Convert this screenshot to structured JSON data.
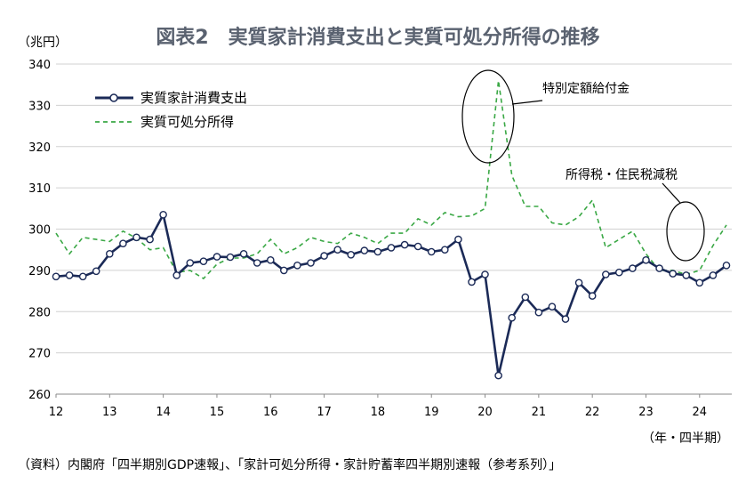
{
  "chart_data": {
    "type": "line",
    "title": "図表2　実質家計消費支出と実質可処分所得の推移",
    "ylabel": "（兆円）",
    "xlabel": "（年・四半期）",
    "ylim": [
      260,
      340
    ],
    "yticks": [
      260,
      270,
      280,
      290,
      300,
      310,
      320,
      330,
      340
    ],
    "xlim": [
      12,
      24.6
    ],
    "xticks": [
      12,
      13,
      14,
      15,
      16,
      17,
      18,
      19,
      20,
      21,
      22,
      23,
      24
    ],
    "grid": "horizontal",
    "legend_position": "top-left",
    "colors": {
      "consumption": "#1b2a57",
      "income": "#3aa845"
    },
    "series": [
      {
        "name": "実質家計消費支出",
        "style": "solid-marker",
        "x": [
          12.0,
          12.25,
          12.5,
          12.75,
          13.0,
          13.25,
          13.5,
          13.75,
          14.0,
          14.25,
          14.5,
          14.75,
          15.0,
          15.25,
          15.5,
          15.75,
          16.0,
          16.25,
          16.5,
          16.75,
          17.0,
          17.25,
          17.5,
          17.75,
          18.0,
          18.25,
          18.5,
          18.75,
          19.0,
          19.25,
          19.5,
          19.75,
          20.0,
          20.25,
          20.5,
          20.75,
          21.0,
          21.25,
          21.5,
          21.75,
          22.0,
          22.25,
          22.5,
          22.75,
          23.0,
          23.25,
          23.5,
          23.75,
          24.0,
          24.25,
          24.5
        ],
        "values": [
          288.5,
          288.8,
          288.5,
          289.8,
          294.0,
          296.5,
          298.0,
          297.5,
          303.5,
          288.8,
          291.8,
          292.2,
          293.3,
          293.2,
          294.0,
          291.8,
          292.5,
          290.0,
          291.2,
          291.8,
          293.5,
          295.0,
          293.8,
          294.8,
          294.5,
          295.5,
          296.2,
          295.8,
          294.5,
          295.0,
          297.5,
          287.2,
          289.0,
          264.5,
          278.5,
          283.5,
          279.8,
          281.2,
          278.2,
          287.0,
          283.8,
          289.0,
          289.5,
          290.5,
          292.5,
          290.5,
          289.2,
          288.8,
          287.0,
          288.8,
          291.2
        ]
      },
      {
        "name": "実質可処分所得",
        "style": "dashed",
        "x": [
          12.0,
          12.25,
          12.5,
          12.75,
          13.0,
          13.25,
          13.5,
          13.75,
          14.0,
          14.25,
          14.5,
          14.75,
          15.0,
          15.25,
          15.5,
          15.75,
          16.0,
          16.25,
          16.5,
          16.75,
          17.0,
          17.25,
          17.5,
          17.75,
          18.0,
          18.25,
          18.5,
          18.75,
          19.0,
          19.25,
          19.5,
          19.75,
          20.0,
          20.25,
          20.5,
          20.75,
          21.0,
          21.25,
          21.5,
          21.75,
          22.0,
          22.25,
          22.5,
          22.75,
          23.0,
          23.25,
          23.5,
          23.75,
          24.0,
          24.25,
          24.5
        ],
        "values": [
          299.0,
          294.0,
          298.0,
          297.5,
          297.0,
          299.5,
          297.8,
          295.0,
          295.5,
          289.5,
          290.0,
          288.0,
          291.5,
          293.0,
          293.0,
          294.0,
          297.5,
          294.0,
          295.5,
          298.0,
          297.0,
          296.5,
          299.0,
          298.0,
          296.5,
          299.0,
          299.0,
          302.5,
          301.0,
          304.0,
          303.0,
          303.2,
          305.0,
          336.0,
          313.0,
          305.5,
          305.5,
          301.5,
          301.0,
          303.0,
          307.0,
          295.5,
          297.5,
          299.5,
          294.0,
          290.0,
          290.0,
          289.0,
          290.0,
          296.0,
          301.0
        ]
      }
    ],
    "annotations": [
      {
        "text": "特別定額給付金"
      },
      {
        "text": "所得税・住民税減税"
      }
    ],
    "source": "（資料）内閣府「四半期別GDP速報」、「家計可処分所得・家計貯蓄率四半期別速報（参考系列）」"
  }
}
